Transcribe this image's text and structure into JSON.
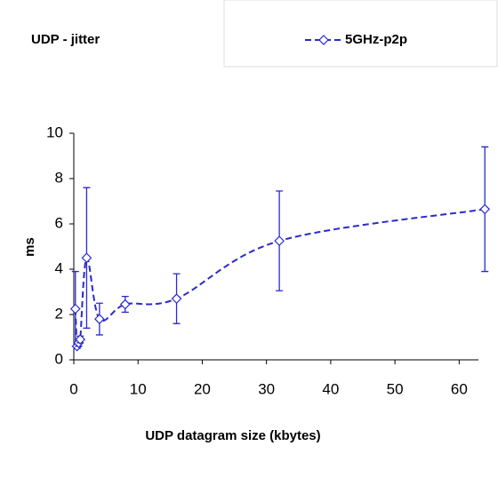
{
  "chart_data": {
    "type": "line",
    "title": "UDP - jitter",
    "x_label": "UDP datagram size (kbytes)",
    "y_label": "ms",
    "series": [
      {
        "name": "5GHz-p2p",
        "color": "#2a2ad0",
        "x": [
          0.25,
          0.5,
          0.75,
          1,
          2,
          4,
          8,
          16,
          32,
          64
        ],
        "values": [
          2.25,
          0.6,
          0.75,
          0.9,
          4.5,
          1.8,
          2.45,
          2.7,
          5.25,
          6.65
        ],
        "errors": [
          1.65,
          0.1,
          0.15,
          0.15,
          3.1,
          0.7,
          0.35,
          1.1,
          2.2,
          2.75
        ]
      }
    ],
    "xlim": [
      0,
      63
    ],
    "xticks": [
      0,
      10,
      20,
      30,
      40,
      50,
      60
    ],
    "ylim": [
      0,
      10
    ],
    "yticks": [
      0,
      2,
      4,
      6,
      8,
      10
    ],
    "legend": "top-right"
  }
}
